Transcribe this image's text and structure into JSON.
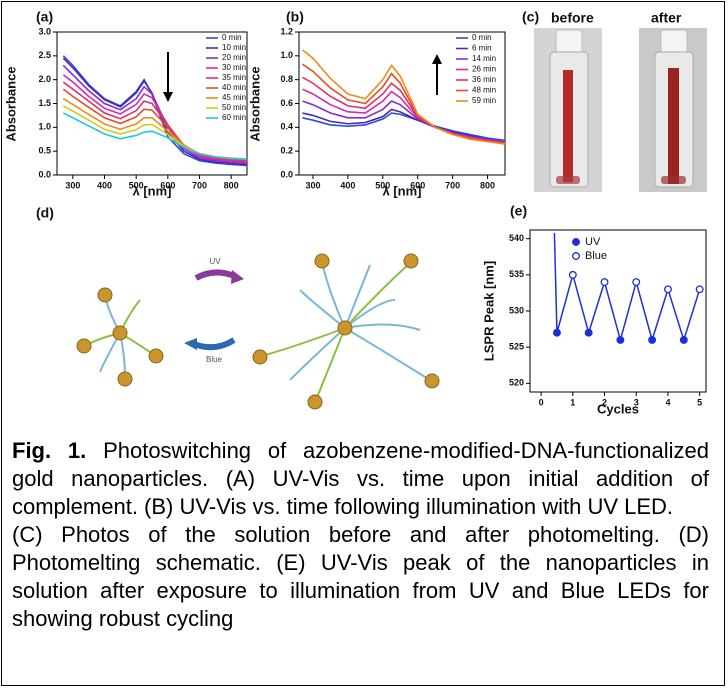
{
  "chart_data": [
    {
      "type": "line",
      "label": "(a)",
      "ylabel": "Absorbance",
      "xlabel": "λ [nm]",
      "x": [
        270,
        300,
        350,
        400,
        450,
        500,
        525,
        550,
        600,
        650,
        700,
        750,
        800,
        850
      ],
      "xlim": [
        250,
        850
      ],
      "xticks": [
        300,
        400,
        500,
        600,
        700,
        800
      ],
      "ylim": [
        0,
        3.0
      ],
      "yticks": [
        {
          "value": 0,
          "label": "0.0"
        },
        {
          "value": 0.5,
          "label": "0.5"
        },
        {
          "value": 1,
          "label": "1.0"
        },
        {
          "value": 1.5,
          "label": "1.5"
        },
        {
          "value": 2,
          "label": "2.0"
        },
        {
          "value": 2.5,
          "label": "2.5"
        },
        {
          "value": 3,
          "label": "3.0"
        }
      ],
      "series": [
        {
          "name": "0 min",
          "color": "#2a4fd8",
          "values": [
            2.5,
            2.3,
            1.9,
            1.6,
            1.45,
            1.75,
            2.0,
            1.7,
            0.8,
            0.45,
            0.3,
            0.25,
            0.22,
            0.2
          ]
        },
        {
          "name": "10 min",
          "color": "#4a2bb0",
          "values": [
            2.45,
            2.25,
            1.87,
            1.58,
            1.43,
            1.72,
            1.97,
            1.72,
            0.9,
            0.5,
            0.33,
            0.27,
            0.24,
            0.22
          ]
        },
        {
          "name": "20 min",
          "color": "#8a2ad0",
          "values": [
            2.3,
            2.1,
            1.77,
            1.5,
            1.37,
            1.6,
            1.85,
            1.7,
            1.0,
            0.55,
            0.36,
            0.3,
            0.27,
            0.25
          ]
        },
        {
          "name": "30 min",
          "color": "#d02ab8",
          "values": [
            2.1,
            1.95,
            1.65,
            1.4,
            1.28,
            1.48,
            1.7,
            1.62,
            1.05,
            0.6,
            0.4,
            0.33,
            0.3,
            0.27
          ]
        },
        {
          "name": "35 min",
          "color": "#e0306a",
          "values": [
            1.95,
            1.8,
            1.55,
            1.3,
            1.18,
            1.35,
            1.55,
            1.5,
            1.05,
            0.62,
            0.42,
            0.35,
            0.32,
            0.3
          ]
        },
        {
          "name": "40 min",
          "color": "#e84a2a",
          "values": [
            1.8,
            1.65,
            1.42,
            1.2,
            1.08,
            1.22,
            1.38,
            1.36,
            1.0,
            0.63,
            0.44,
            0.37,
            0.34,
            0.32
          ]
        },
        {
          "name": "45 min",
          "color": "#f08a1a",
          "values": [
            1.6,
            1.48,
            1.27,
            1.07,
            0.96,
            1.07,
            1.2,
            1.2,
            0.92,
            0.62,
            0.45,
            0.38,
            0.35,
            0.33
          ]
        },
        {
          "name": "50 min",
          "color": "#d8c81a",
          "values": [
            1.45,
            1.34,
            1.15,
            0.96,
            0.86,
            0.95,
            1.05,
            1.06,
            0.85,
            0.6,
            0.45,
            0.38,
            0.35,
            0.33
          ]
        },
        {
          "name": "60 min",
          "color": "#1ac8e0",
          "values": [
            1.3,
            1.2,
            1.03,
            0.86,
            0.76,
            0.83,
            0.9,
            0.92,
            0.78,
            0.58,
            0.44,
            0.38,
            0.35,
            0.33
          ]
        }
      ]
    },
    {
      "type": "line",
      "label": "(b)",
      "ylabel": "Absorbance",
      "xlabel": "λ [nm]",
      "x": [
        270,
        300,
        350,
        400,
        450,
        500,
        525,
        550,
        600,
        650,
        700,
        750,
        800,
        850
      ],
      "xlim": [
        260,
        850
      ],
      "xticks": [
        300,
        400,
        500,
        600,
        700,
        800
      ],
      "ylim": [
        0,
        1.2
      ],
      "yticks": [
        {
          "value": 0,
          "label": "0.0"
        },
        {
          "value": 0.2,
          "label": "0.2"
        },
        {
          "value": 0.4,
          "label": "0.4"
        },
        {
          "value": 0.6,
          "label": "0.6"
        },
        {
          "value": 0.8,
          "label": "0.8"
        },
        {
          "value": 1.0,
          "label": "1.0"
        },
        {
          "value": 1.2,
          "label": "1.2"
        }
      ],
      "series": [
        {
          "name": "0 min",
          "color": "#2a4fd8",
          "values": [
            0.48,
            0.46,
            0.42,
            0.41,
            0.42,
            0.47,
            0.52,
            0.51,
            0.46,
            0.41,
            0.37,
            0.34,
            0.31,
            0.29
          ]
        },
        {
          "name": "6 min",
          "color": "#4a2bb0",
          "values": [
            0.52,
            0.5,
            0.45,
            0.43,
            0.44,
            0.49,
            0.55,
            0.53,
            0.46,
            0.4,
            0.36,
            0.33,
            0.3,
            0.28
          ]
        },
        {
          "name": "14 min",
          "color": "#8a2ad0",
          "values": [
            0.62,
            0.59,
            0.52,
            0.48,
            0.48,
            0.55,
            0.62,
            0.59,
            0.47,
            0.4,
            0.35,
            0.32,
            0.3,
            0.28
          ]
        },
        {
          "name": "26 min",
          "color": "#d02ab8",
          "values": [
            0.72,
            0.68,
            0.59,
            0.53,
            0.52,
            0.62,
            0.7,
            0.65,
            0.48,
            0.4,
            0.35,
            0.32,
            0.29,
            0.27
          ]
        },
        {
          "name": "36 min",
          "color": "#e0306a",
          "values": [
            0.82,
            0.77,
            0.66,
            0.58,
            0.56,
            0.68,
            0.77,
            0.71,
            0.49,
            0.4,
            0.35,
            0.31,
            0.29,
            0.27
          ]
        },
        {
          "name": "48 min",
          "color": "#e84a2a",
          "values": [
            0.93,
            0.87,
            0.73,
            0.63,
            0.6,
            0.74,
            0.85,
            0.77,
            0.5,
            0.4,
            0.34,
            0.31,
            0.28,
            0.26
          ]
        },
        {
          "name": "59 min",
          "color": "#f08a1a",
          "values": [
            1.05,
            0.98,
            0.81,
            0.68,
            0.64,
            0.8,
            0.92,
            0.83,
            0.51,
            0.4,
            0.34,
            0.3,
            0.28,
            0.26
          ]
        }
      ]
    },
    {
      "type": "scatter",
      "label": "(e)",
      "ylabel": "LSPR Peak [nm]",
      "xlabel": "Cycles",
      "xlim": [
        -0.35,
        5.2
      ],
      "xticks": [
        0,
        1,
        2,
        3,
        4,
        5
      ],
      "ylim": [
        518.8,
        541.2
      ],
      "yticks": [
        520,
        525,
        530,
        535,
        540
      ],
      "line_color": "#1f2fd6",
      "series": [
        {
          "name": "UV",
          "color": "#1f2fd6",
          "marker": "filled",
          "x": [
            0.5,
            1.5,
            2.5,
            3.5,
            4.5
          ],
          "values": [
            527,
            527,
            526,
            526,
            526
          ]
        },
        {
          "name": "Blue",
          "color": "#1f2fd6",
          "marker": "open",
          "x": [
            1,
            2,
            3,
            4,
            5
          ],
          "values": [
            535,
            534,
            534,
            533,
            533
          ]
        },
        {
          "color": "#1f2fd6",
          "marker": "none",
          "x": [
            0.42
          ],
          "values": [
            540.8
          ]
        }
      ]
    }
  ],
  "panel_c": {
    "label": "(c)",
    "before": "before",
    "after": "after"
  },
  "panel_d": {
    "label": "(d)",
    "uv": "UV",
    "blue": "Blue"
  },
  "caption": {
    "fig_label": "Fig. 1.",
    "text": " Photoswitching of azobenzene-modified-DNA-functionalized gold nanoparticles. (A) UV-Vis vs. time upon initial addition of complement. (B) UV-Vis vs. time following illumination with UV LED.",
    "text2": "(C) Photos of the solution before and after photomelting. (D) Photomelting schematic. (E) UV-Vis peak of the nanoparticles in solution after exposure to illumination from UV and Blue LEDs for showing robust cycling"
  }
}
